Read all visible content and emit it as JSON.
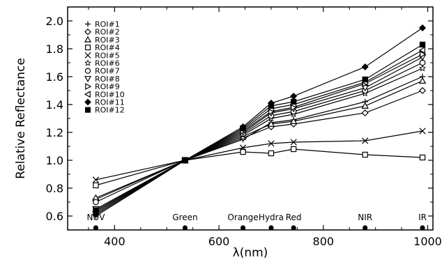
{
  "chart_data": {
    "type": "line",
    "title": "",
    "xlabel": "λ(nm)",
    "ylabel": "Relative Reflectance",
    "xlim": [
      310,
      1010
    ],
    "ylim": [
      0.5,
      2.1
    ],
    "xticks": [
      400,
      600,
      800,
      1000
    ],
    "yticks": [
      0.6,
      0.8,
      1.0,
      1.2,
      1.4,
      1.6,
      1.8,
      2.0
    ],
    "x": [
      364,
      535,
      646,
      700,
      743,
      880,
      990
    ],
    "band_labels": [
      "NUV",
      "Green",
      "Orange",
      "Hydra",
      "Red",
      "NIR",
      "IR"
    ],
    "legend_placement": "top-left",
    "grid": false,
    "series": [
      {
        "name": "ROI#1",
        "marker": "plus",
        "values": [
          0.6,
          1.0,
          1.15,
          1.27,
          1.29,
          1.42,
          1.6
        ]
      },
      {
        "name": "ROI#2",
        "marker": "diamond",
        "values": [
          0.72,
          1.0,
          1.16,
          1.24,
          1.26,
          1.34,
          1.5
        ]
      },
      {
        "name": "ROI#3",
        "marker": "triangle-up",
        "values": [
          0.73,
          1.0,
          1.17,
          1.26,
          1.28,
          1.39,
          1.57
        ]
      },
      {
        "name": "ROI#4",
        "marker": "square-open",
        "values": [
          0.82,
          1.0,
          1.06,
          1.05,
          1.08,
          1.04,
          1.02
        ]
      },
      {
        "name": "ROI#5",
        "marker": "x",
        "values": [
          0.86,
          1.0,
          1.09,
          1.12,
          1.13,
          1.14,
          1.21
        ]
      },
      {
        "name": "ROI#6",
        "marker": "star",
        "values": [
          0.62,
          1.0,
          1.18,
          1.3,
          1.33,
          1.48,
          1.66
        ]
      },
      {
        "name": "ROI#7",
        "marker": "circle",
        "values": [
          0.7,
          1.0,
          1.19,
          1.32,
          1.35,
          1.5,
          1.7
        ]
      },
      {
        "name": "ROI#8",
        "marker": "triangle-down",
        "values": [
          0.65,
          1.0,
          1.2,
          1.34,
          1.37,
          1.52,
          1.74
        ]
      },
      {
        "name": "ROI#9",
        "marker": "triangle-right",
        "values": [
          0.64,
          1.0,
          1.21,
          1.35,
          1.38,
          1.55,
          1.76
        ]
      },
      {
        "name": "ROI#10",
        "marker": "triangle-left",
        "values": [
          0.63,
          1.0,
          1.22,
          1.37,
          1.4,
          1.56,
          1.79
        ]
      },
      {
        "name": "ROI#11",
        "marker": "diamond-filled",
        "values": [
          0.61,
          1.0,
          1.24,
          1.41,
          1.46,
          1.67,
          1.95
        ]
      },
      {
        "name": "ROI#12",
        "marker": "square-filled",
        "values": [
          0.64,
          1.0,
          1.23,
          1.39,
          1.42,
          1.58,
          1.83
        ]
      }
    ]
  }
}
